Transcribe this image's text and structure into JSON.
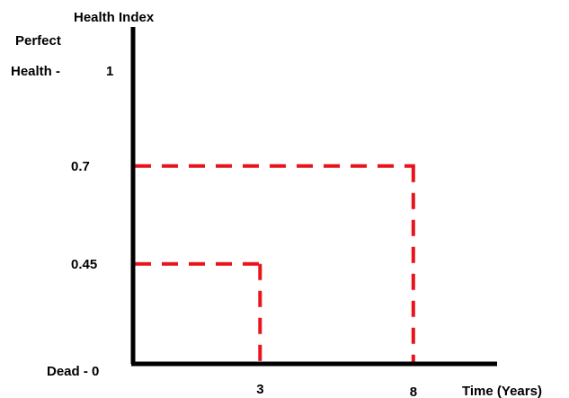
{
  "y_axis": {
    "title": "Health Index",
    "top_label_line1": "Perfect",
    "top_label_line2": "Health -",
    "top_value": "1",
    "bottom_label": "Dead - 0"
  },
  "x_axis": {
    "title": "Time (Years)"
  },
  "markers": [
    {
      "x": 3,
      "y": 0.45,
      "x_label": "3",
      "y_label": "0.45"
    },
    {
      "x": 8,
      "y": 0.7,
      "x_label": "8",
      "y_label": "0.7"
    }
  ],
  "colors": {
    "axis": "#000000",
    "guide_lines": "#e8141b"
  }
}
